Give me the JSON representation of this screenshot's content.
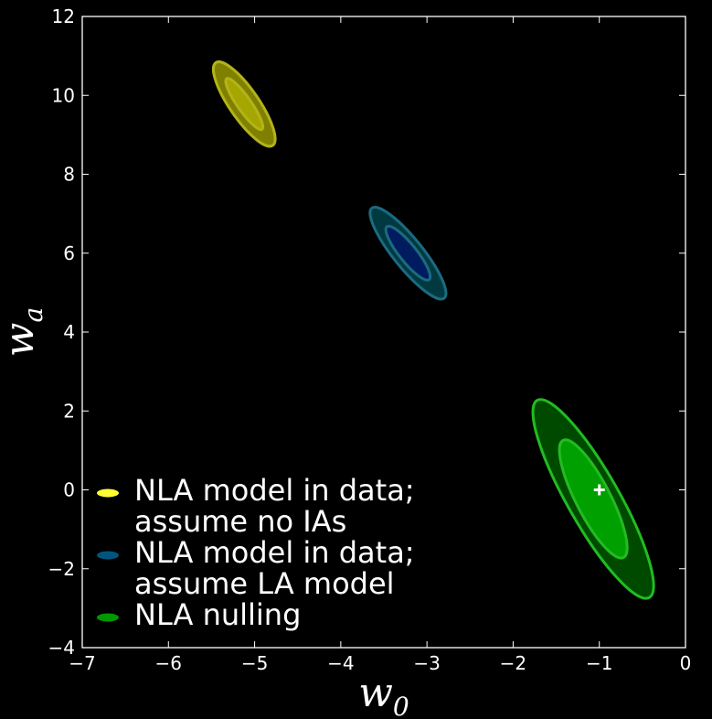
{
  "chart_data": {
    "type": "contour",
    "xlabel": {
      "base": "w",
      "sub": "0"
    },
    "ylabel": {
      "base": "w",
      "sub": "a"
    },
    "xlim": [
      -7,
      0
    ],
    "ylim": [
      -4,
      12
    ],
    "xticks": [
      -7,
      -6,
      -5,
      -4,
      -3,
      -2,
      -1,
      0
    ],
    "yticks": [
      -4,
      -2,
      0,
      2,
      4,
      6,
      8,
      10,
      12
    ],
    "xtick_labels": [
      "−7",
      "−6",
      "−5",
      "−4",
      "−3",
      "−2",
      "−1",
      "0"
    ],
    "ytick_labels": [
      "−4",
      "−2",
      "0",
      "2",
      "4",
      "6",
      "8",
      "10",
      "12"
    ],
    "grid": false,
    "legend_position": "lower-left",
    "fiducial_marker": {
      "x": -1,
      "y": 0,
      "symbol": "+"
    },
    "series": [
      {
        "name": "NLA model in data;\n assume no IAs",
        "legend_lines": [
          "NLA model in data;",
          " assume no IAs"
        ],
        "legend_color": "#ffff33",
        "outer_color": "#808000",
        "inner_color": "#a6a600",
        "edge_color": "#b3b31a",
        "ellipses": [
          {
            "level": "outer",
            "center": [
              -5.12,
              9.78
            ],
            "major_end_a": [
              -5.45,
              10.82
            ],
            "major_end_b": [
              -4.79,
              8.72
            ],
            "minor_half_width": 0.17
          },
          {
            "level": "inner",
            "center": [
              -5.12,
              9.78
            ],
            "major_end_a": [
              -5.33,
              10.42
            ],
            "major_end_b": [
              -4.92,
              9.14
            ],
            "minor_half_width": 0.08
          }
        ]
      },
      {
        "name": "NLA model in data;\n assume LA model",
        "legend_lines": [
          "NLA model in data;",
          " assume LA model"
        ],
        "legend_color": "#00557f",
        "outer_color": "#003a40",
        "inner_color": "#001b5e",
        "edge_color": "#1b6a80",
        "ellipses": [
          {
            "level": "outer",
            "center": [
              -3.22,
              6.0
            ],
            "major_end_a": [
              -3.64,
              7.13
            ],
            "major_end_b": [
              -2.8,
              4.85
            ],
            "minor_half_width": 0.17
          },
          {
            "level": "inner",
            "center": [
              -3.22,
              6.0
            ],
            "major_end_a": [
              -3.46,
              6.66
            ],
            "major_end_b": [
              -2.97,
              5.32
            ],
            "minor_half_width": 0.1
          }
        ]
      },
      {
        "name": "NLA nulling",
        "legend_lines": [
          "NLA nulling"
        ],
        "legend_color": "#009900",
        "outer_color": "#004a00",
        "inner_color": "#00a000",
        "edge_color": "#22bb22",
        "ellipses": [
          {
            "level": "outer",
            "center": [
              -1.07,
              -0.23
            ],
            "major_end_a": [
              -1.72,
              2.25
            ],
            "major_end_b": [
              -0.42,
              -2.75
            ],
            "minor_half_width": 0.3
          },
          {
            "level": "inner",
            "center": [
              -1.07,
              -0.23
            ],
            "major_end_a": [
              -1.4,
              1.22
            ],
            "major_end_b": [
              -0.7,
              -1.75
            ],
            "minor_half_width": 0.2
          }
        ]
      }
    ]
  }
}
